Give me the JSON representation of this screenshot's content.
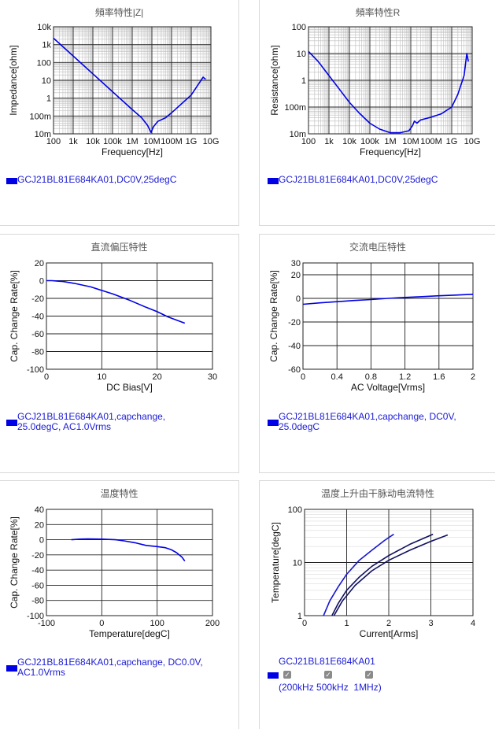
{
  "panels": [
    {
      "title": "頻率特性|Z|",
      "legend": "GCJ21BL81E684KA01,DC0V,25degC",
      "chart_data": {
        "type": "line",
        "xscale": "log",
        "yscale": "log",
        "xlabel": "Frequency[Hz]",
        "ylabel": "Impedance[ohm]",
        "xlim": [
          100,
          10000000000
        ],
        "ylim": [
          0.01,
          10000
        ],
        "xticks": [
          100,
          1000,
          10000,
          100000,
          1000000,
          10000000,
          100000000,
          1000000000,
          10000000000
        ],
        "xtick_labels": [
          "100",
          "1k",
          "10k",
          "100k",
          "1M",
          "10M",
          "100M",
          "1G",
          "10G"
        ],
        "yticks": [
          0.01,
          0.1,
          1,
          10,
          100,
          1000,
          10000
        ],
        "ytick_labels": [
          "10m",
          "100m",
          "1",
          "10",
          "100",
          "1k",
          "10k"
        ],
        "color": "#0000e6",
        "series": [
          {
            "x": [
              100,
              1000,
              10000,
              100000,
              1000000,
              3000000,
              6000000,
              9000000,
              12000000,
              20000000,
              50000000,
              100000000,
              1000000000,
              4000000000,
              5000000000,
              5500000000
            ],
            "y": [
              2300,
              230,
              23,
              2.3,
              0.23,
              0.08,
              0.03,
              0.012,
              0.025,
              0.05,
              0.08,
              0.15,
              1.5,
              15,
              12,
              12
            ]
          }
        ]
      }
    },
    {
      "title": "頻率特性R",
      "legend": "GCJ21BL81E684KA01,DC0V,25degC",
      "chart_data": {
        "type": "line",
        "xscale": "log",
        "yscale": "log",
        "xlabel": "Frequency[Hz]",
        "ylabel": "Resistance[ohm]",
        "xlim": [
          100,
          10000000000
        ],
        "ylim": [
          0.01,
          100
        ],
        "xticks": [
          100,
          1000,
          10000,
          100000,
          1000000,
          10000000,
          100000000,
          1000000000,
          10000000000
        ],
        "xtick_labels": [
          "100",
          "1k",
          "10k",
          "100k",
          "1M",
          "10M",
          "100M",
          "1G",
          "10G"
        ],
        "yticks": [
          0.01,
          0.1,
          1,
          10,
          100
        ],
        "ytick_labels": [
          "10m",
          "100m",
          "1",
          "10",
          "100"
        ],
        "color": "#0000e6",
        "series": [
          {
            "x": [
              100,
              300,
              1000,
              3000,
              10000,
              30000,
              100000,
              300000,
              1000000,
              3000000,
              8000000,
              12000000,
              15000000,
              20000000,
              30000000,
              100000000,
              300000000,
              1000000000,
              2000000000,
              4000000000,
              5500000000,
              6000000000,
              6500000000
            ],
            "y": [
              12,
              5,
              1.5,
              0.5,
              0.15,
              0.06,
              0.025,
              0.015,
              0.011,
              0.011,
              0.013,
              0.02,
              0.03,
              0.025,
              0.033,
              0.042,
              0.055,
              0.1,
              0.3,
              1.5,
              10,
              7,
              5
            ]
          }
        ]
      }
    },
    {
      "title": "直流偏压特性",
      "legend_lines": [
        "GCJ21BL81E684KA01,capchange,",
        "25.0degC, AC1.0Vrms"
      ],
      "chart_data": {
        "type": "line",
        "xlabel": "DC Bias[V]",
        "ylabel": "Cap. Change Rate[%]",
        "xlim": [
          0,
          30
        ],
        "ylim": [
          -100,
          20
        ],
        "xticks": [
          0,
          10,
          20,
          30
        ],
        "xtick_labels": [
          "0",
          "10",
          "20",
          "30"
        ],
        "yticks": [
          -100,
          -80,
          -60,
          -40,
          -20,
          0,
          20
        ],
        "ytick_labels": [
          "-100",
          "-80",
          "-60",
          "-40",
          "-20",
          "0",
          "20"
        ],
        "color": "#0000e6",
        "series": [
          {
            "x": [
              0,
              1,
              2,
              3,
              5,
              8,
              10,
              12,
              15,
              18,
              20,
              22,
              25
            ],
            "y": [
              0,
              0,
              -0.5,
              -1,
              -3,
              -7,
              -11,
              -15,
              -22,
              -30,
              -35,
              -41,
              -48
            ]
          }
        ]
      }
    },
    {
      "title": "交流电压特性",
      "legend_lines": [
        "GCJ21BL81E684KA01,capchange, DC0V,",
        "25.0degC"
      ],
      "chart_data": {
        "type": "line",
        "xlabel": "AC Voltage[Vrms]",
        "ylabel": "Cap. Change Rate[%]",
        "xlim": [
          0,
          2
        ],
        "ylim": [
          -60,
          30
        ],
        "xticks": [
          0,
          0.4,
          0.8,
          1.2,
          1.6,
          2
        ],
        "xtick_labels": [
          "0",
          "0.4",
          "0.8",
          "1.2",
          "1.6",
          "2"
        ],
        "yticks": [
          -60,
          -40,
          -20,
          0,
          20,
          30
        ],
        "ytick_labels": [
          "-60",
          "-40",
          "-20",
          "0",
          "20",
          "30"
        ],
        "color": "#0000e6",
        "series": [
          {
            "x": [
              0,
              0.2,
              0.4,
              0.6,
              0.8,
              1.0,
              1.2,
              1.4,
              1.6,
              1.8,
              2.0
            ],
            "y": [
              -5,
              -3.8,
              -2.8,
              -1.8,
              -1,
              0,
              0.8,
              1.5,
              2.2,
              2.8,
              3.5
            ]
          }
        ]
      }
    },
    {
      "title": "温度特性",
      "legend_lines": [
        "GCJ21BL81E684KA01,capchange, DC0.0V,",
        "AC1.0Vrms"
      ],
      "chart_data": {
        "type": "line",
        "xlabel": "Temperature[degC]",
        "ylabel": "Cap. Change Rate[%]",
        "xlim": [
          -100,
          200
        ],
        "ylim": [
          -100,
          40
        ],
        "xticks": [
          -100,
          0,
          100,
          200
        ],
        "xtick_labels": [
          "-100",
          "0",
          "100",
          "200"
        ],
        "yticks": [
          -100,
          -80,
          -60,
          -40,
          -20,
          0,
          20,
          40
        ],
        "ytick_labels": [
          "-100",
          "-80",
          "-60",
          "-40",
          "-20",
          "0",
          "20",
          "40"
        ],
        "color": "#0000e6",
        "series": [
          {
            "x": [
              -55,
              -40,
              -25,
              0,
              25,
              40,
              60,
              80,
              100,
              115,
              125,
              135,
              145,
              150
            ],
            "y": [
              0,
              0.8,
              1,
              0.8,
              0,
              -1.5,
              -4,
              -7.5,
              -9,
              -10.5,
              -13,
              -17,
              -23,
              -28
            ]
          }
        ]
      }
    },
    {
      "title": "温度上升由干脉动电流特性",
      "legend_title": "GCJ21BL81E684KA01",
      "legend_items": [
        "200kHz",
        "500kHz",
        "1MHz"
      ],
      "chart_data": {
        "type": "line",
        "yscale": "log",
        "xlabel": "Current[Arms]",
        "ylabel": "Temperature[degC]",
        "xlim": [
          0,
          4
        ],
        "ylim": [
          1,
          100
        ],
        "xticks": [
          0,
          1,
          2,
          3,
          4
        ],
        "xtick_labels": [
          "0",
          "1",
          "2",
          "3",
          "4"
        ],
        "yticks": [
          1,
          10,
          100
        ],
        "ytick_labels": [
          "1",
          "10",
          "100"
        ],
        "series": [
          {
            "name": "200kHz",
            "color": "#1515d0",
            "x": [
              0.45,
              0.6,
              0.8,
              1.0,
              1.3,
              1.6,
              1.9,
              2.12
            ],
            "y": [
              1,
              1.9,
              3.5,
              6,
              11,
              17,
              26,
              34
            ]
          },
          {
            "name": "500kHz",
            "color": "#101060",
            "x": [
              0.65,
              0.8,
              1.0,
              1.3,
              1.6,
              2.0,
              2.5,
              3.05
            ],
            "y": [
              1,
              1.7,
              3,
              5.3,
              8.5,
              13.5,
              22,
              34
            ]
          },
          {
            "name": "1MHz",
            "color": "#101060",
            "x": [
              0.7,
              0.9,
              1.2,
              1.6,
              2.0,
              2.5,
              3.0,
              3.4
            ],
            "y": [
              1,
              1.9,
              3.7,
              7,
              11,
              17,
              25,
              33
            ]
          }
        ]
      }
    }
  ]
}
